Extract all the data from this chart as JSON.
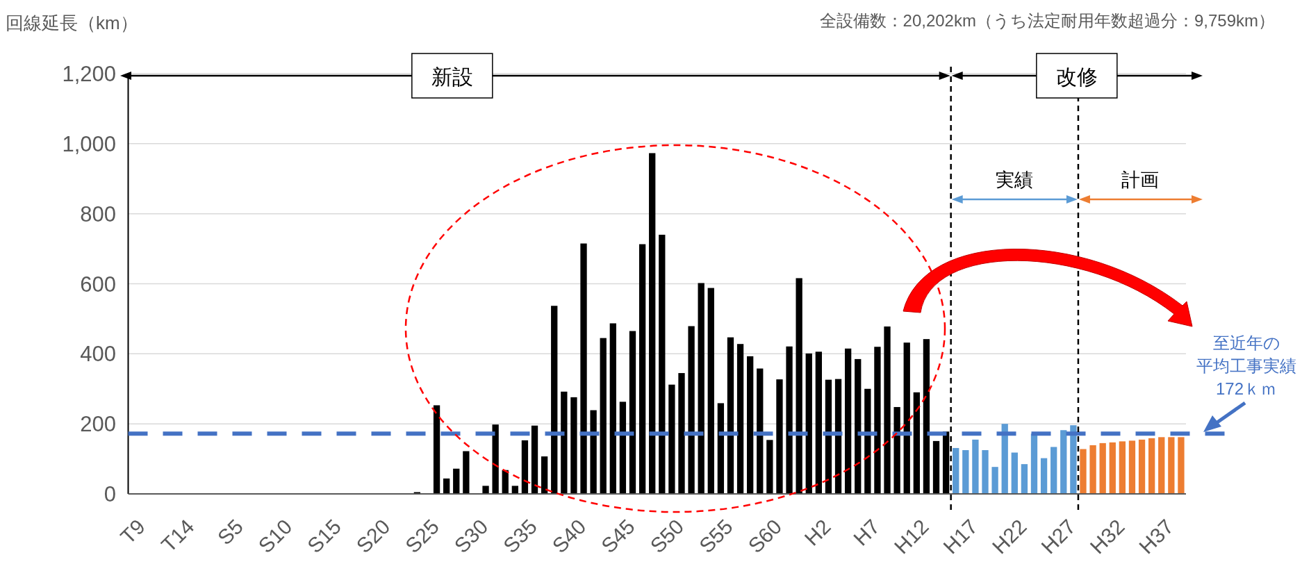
{
  "chart_data": {
    "type": "bar",
    "ylabel": "回線延長（km）",
    "categories": [
      "T9",
      null,
      null,
      null,
      null,
      "T14",
      null,
      null,
      null,
      null,
      "S5",
      null,
      null,
      null,
      null,
      "S10",
      null,
      null,
      null,
      null,
      "S15",
      null,
      null,
      null,
      null,
      "S20",
      null,
      null,
      null,
      null,
      "S25",
      null,
      null,
      null,
      null,
      "S30",
      null,
      null,
      null,
      null,
      "S35",
      null,
      null,
      null,
      null,
      "S40",
      null,
      null,
      null,
      null,
      "S45",
      null,
      null,
      null,
      null,
      "S50",
      null,
      null,
      null,
      null,
      "S55",
      null,
      null,
      null,
      null,
      "S60",
      null,
      null,
      null,
      null,
      "H2",
      null,
      null,
      null,
      null,
      "H7",
      null,
      null,
      null,
      null,
      "H12",
      null,
      null,
      null,
      null,
      "H17",
      null,
      null,
      null,
      null,
      "H22",
      null,
      null,
      null,
      null,
      "H27",
      null,
      null,
      null,
      null,
      "H32",
      null,
      null,
      null,
      null,
      "H37",
      null,
      null
    ],
    "series": [
      {
        "color": "#000000",
        "values": [
          0,
          0,
          0,
          0,
          0,
          0,
          0,
          0,
          0,
          0,
          0,
          0,
          0,
          0,
          0,
          0,
          0,
          0,
          0,
          0,
          0,
          0,
          0,
          0,
          0,
          0,
          0,
          0,
          0,
          5,
          0,
          253,
          44,
          72,
          122,
          2,
          23,
          198,
          68,
          23,
          153,
          195,
          107,
          537,
          292,
          276,
          715,
          239,
          445,
          487,
          263,
          465,
          713,
          973,
          740,
          312,
          345,
          479,
          602,
          588,
          259,
          447,
          428,
          393,
          358,
          154,
          327,
          421,
          616,
          401,
          406,
          326,
          328,
          415,
          385,
          300,
          420,
          478,
          248,
          432,
          290,
          442,
          151,
          178,
          null,
          null,
          null,
          null,
          null,
          null,
          null,
          null,
          null,
          null,
          null,
          null,
          null,
          null,
          null,
          null,
          null,
          null,
          null,
          null,
          null,
          null,
          null,
          null
        ]
      },
      {
        "color": "#5b9bd5",
        "values": [
          null,
          null,
          null,
          null,
          null,
          null,
          null,
          null,
          null,
          null,
          null,
          null,
          null,
          null,
          null,
          null,
          null,
          null,
          null,
          null,
          null,
          null,
          null,
          null,
          null,
          null,
          null,
          null,
          null,
          null,
          null,
          null,
          null,
          null,
          null,
          null,
          null,
          null,
          null,
          null,
          null,
          null,
          null,
          null,
          null,
          null,
          null,
          null,
          null,
          null,
          null,
          null,
          null,
          null,
          null,
          null,
          null,
          null,
          null,
          null,
          null,
          null,
          null,
          null,
          null,
          null,
          null,
          null,
          null,
          null,
          null,
          null,
          null,
          null,
          null,
          null,
          null,
          null,
          null,
          null,
          null,
          null,
          null,
          null,
          131,
          125,
          155,
          125,
          77,
          200,
          118,
          85,
          172,
          102,
          134,
          182,
          196,
          null,
          null,
          null,
          null,
          null,
          null,
          null,
          null,
          null,
          null,
          null
        ]
      },
      {
        "color": "#ed7d31",
        "values": [
          null,
          null,
          null,
          null,
          null,
          null,
          null,
          null,
          null,
          null,
          null,
          null,
          null,
          null,
          null,
          null,
          null,
          null,
          null,
          null,
          null,
          null,
          null,
          null,
          null,
          null,
          null,
          null,
          null,
          null,
          null,
          null,
          null,
          null,
          null,
          null,
          null,
          null,
          null,
          null,
          null,
          null,
          null,
          null,
          null,
          null,
          null,
          null,
          null,
          null,
          null,
          null,
          null,
          null,
          null,
          null,
          null,
          null,
          null,
          null,
          null,
          null,
          null,
          null,
          null,
          null,
          null,
          null,
          null,
          null,
          null,
          null,
          null,
          null,
          null,
          null,
          null,
          null,
          null,
          null,
          null,
          null,
          null,
          null,
          null,
          null,
          null,
          null,
          null,
          null,
          null,
          null,
          null,
          null,
          null,
          null,
          null,
          128,
          139,
          145,
          147,
          150,
          152,
          155,
          159,
          162,
          162,
          162
        ]
      }
    ],
    "ylim": [
      0,
      1200
    ],
    "yticks": [
      0,
      200,
      400,
      600,
      800,
      {
        "value": 1000,
        "label": "1,000"
      },
      {
        "value": 1200,
        "label": "1,200"
      }
    ],
    "grid": "y",
    "ref_lines": [
      {
        "axis": "y",
        "value": 172,
        "label": "至近年の平均工事実績172ｋｍ",
        "color": "#4472c4",
        "line_style": "dashed"
      }
    ],
    "annotations": [
      "全設備数：20,202km（うち法定耐用年数超過分：9,759km）",
      "新設",
      "改修",
      "実績",
      "計画"
    ]
  }
}
